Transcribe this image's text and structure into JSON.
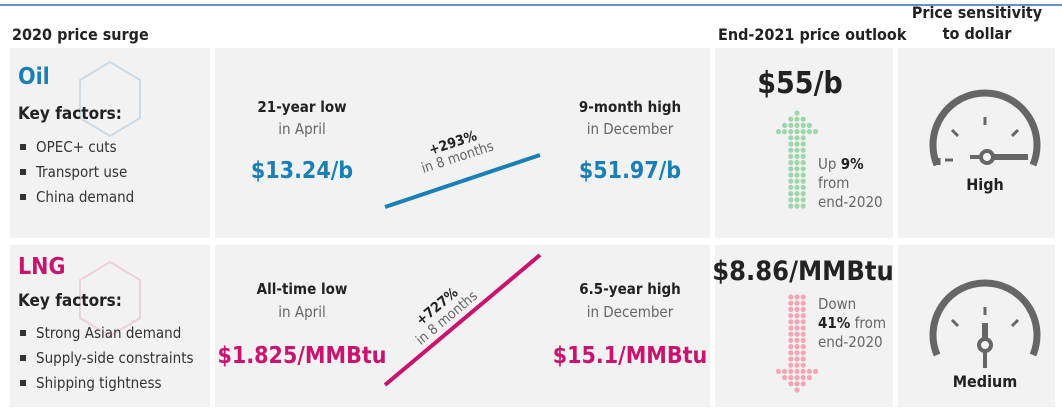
{
  "header": {
    "surge": "2020 price surge",
    "outlook": "End-2021 price outlook",
    "sensitivity": [
      "Price sensitivity",
      "to dollar"
    ]
  },
  "rows": [
    {
      "name": "Oil",
      "factors_label": "Key factors:",
      "factors": [
        "OPEC+ cuts",
        "Transport use",
        "China demand"
      ],
      "low": {
        "label": "21-year low",
        "when": "in April",
        "price": "$13.24/b"
      },
      "change": {
        "pct": "+293%",
        "period": "in 8 months"
      },
      "high": {
        "label": "9-month high",
        "when": "in December",
        "price": "$51.97/b"
      },
      "outlook": {
        "price": "$55/b",
        "lines": [
          [
            "Up",
            "9%"
          ],
          [
            "from"
          ],
          [
            "end-2020"
          ]
        ]
      },
      "sensitivity": "High"
    },
    {
      "name": "LNG",
      "factors_label": "Key factors:",
      "factors": [
        "Strong Asian demand",
        "Supply-side constraints",
        "Shipping tightness"
      ],
      "low": {
        "label": "All-time low",
        "when": "in April",
        "price": "$1.825/MMBtu"
      },
      "change": {
        "pct": "+727%",
        "period": "in 8 months"
      },
      "high": {
        "label": "6.5-year high",
        "when": "in December",
        "price": "$15.1/MMBtu"
      },
      "outlook": {
        "price": "$8.86/MMBtu",
        "lines": [
          [
            "Down"
          ],
          [
            "41%",
            "from"
          ],
          [
            "end-2020"
          ]
        ]
      },
      "sensitivity": "Medium"
    }
  ]
}
